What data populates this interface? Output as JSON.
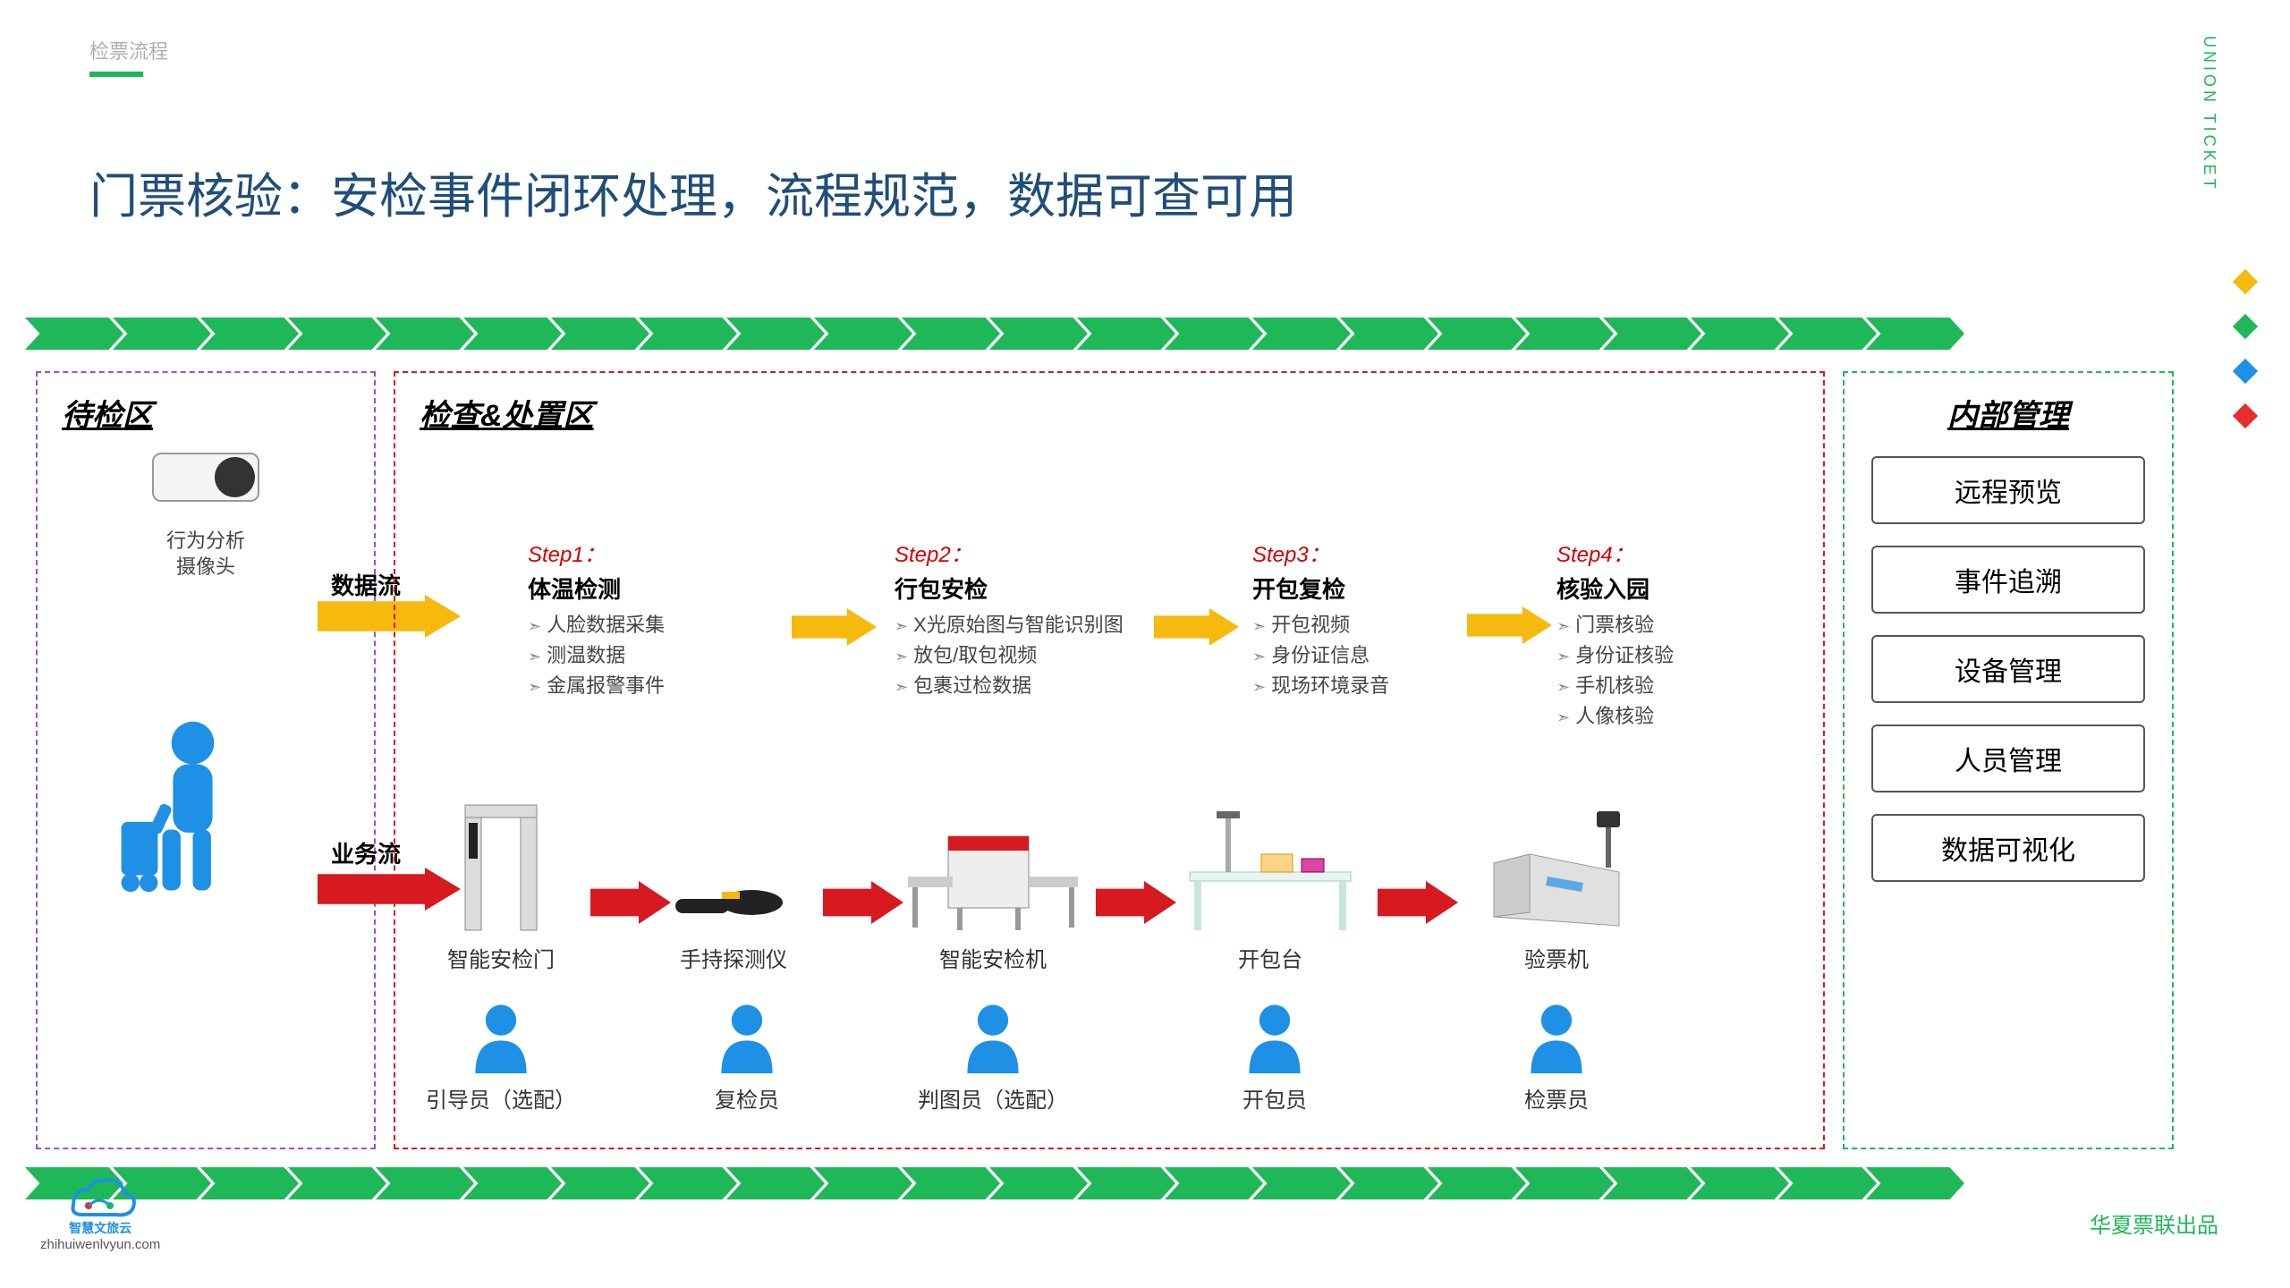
{
  "breadcrumb": "检票流程",
  "side_label": "UNION TICKET",
  "title": "门票核验：安检事件闭环处理，流程规范，数据可查可用",
  "colors": {
    "green": "#1fb858",
    "navy": "#1f4e79",
    "purple": "#9b4fd1",
    "red": "#d71920",
    "yellow": "#f6b90e",
    "iconblue": "#1e90e5",
    "diamonds": [
      "#f6b90e",
      "#1fb858",
      "#1e90e5",
      "#e92c2c"
    ]
  },
  "chevron_count": 22,
  "zones": {
    "waiting": {
      "title": "待检区",
      "camera_label": "行为分析\n摄像头"
    },
    "check": {
      "title": "检查&处置区"
    },
    "mgmt": {
      "title": "内部管理",
      "items": [
        "远程预览",
        "事件追溯",
        "设备管理",
        "人员管理",
        "数据可视化"
      ]
    }
  },
  "flows": {
    "data": "数据流",
    "biz": "业务流"
  },
  "steps": [
    {
      "tag": "Step1：",
      "title": "体温检测",
      "items": [
        "人脸数据采集",
        "测温数据",
        "金属报警事件"
      ]
    },
    {
      "tag": "Step2：",
      "title": "行包安检",
      "items": [
        "X光原始图与智能识别图",
        "放包/取包视频",
        "包裹过检数据"
      ]
    },
    {
      "tag": "Step3：",
      "title": "开包复检",
      "items": [
        "开包视频",
        "身份证信息",
        "现场环境录音"
      ]
    },
    {
      "tag": "Step4：",
      "title": "核验入园",
      "items": [
        "门票核验",
        "身份证核验",
        "手机核验",
        "人像核验"
      ]
    }
  ],
  "equipment": [
    "智能安检门",
    "手持探测仪",
    "智能安检机",
    "开包台",
    "验票机"
  ],
  "staff": [
    "引导员（选配）",
    "复检员",
    "判图员（选配）",
    "开包员",
    "检票员"
  ],
  "footer": {
    "domain": "zhihuiwenlvyun.com",
    "brand": "智慧文旅云",
    "right": "华夏票联出品"
  }
}
